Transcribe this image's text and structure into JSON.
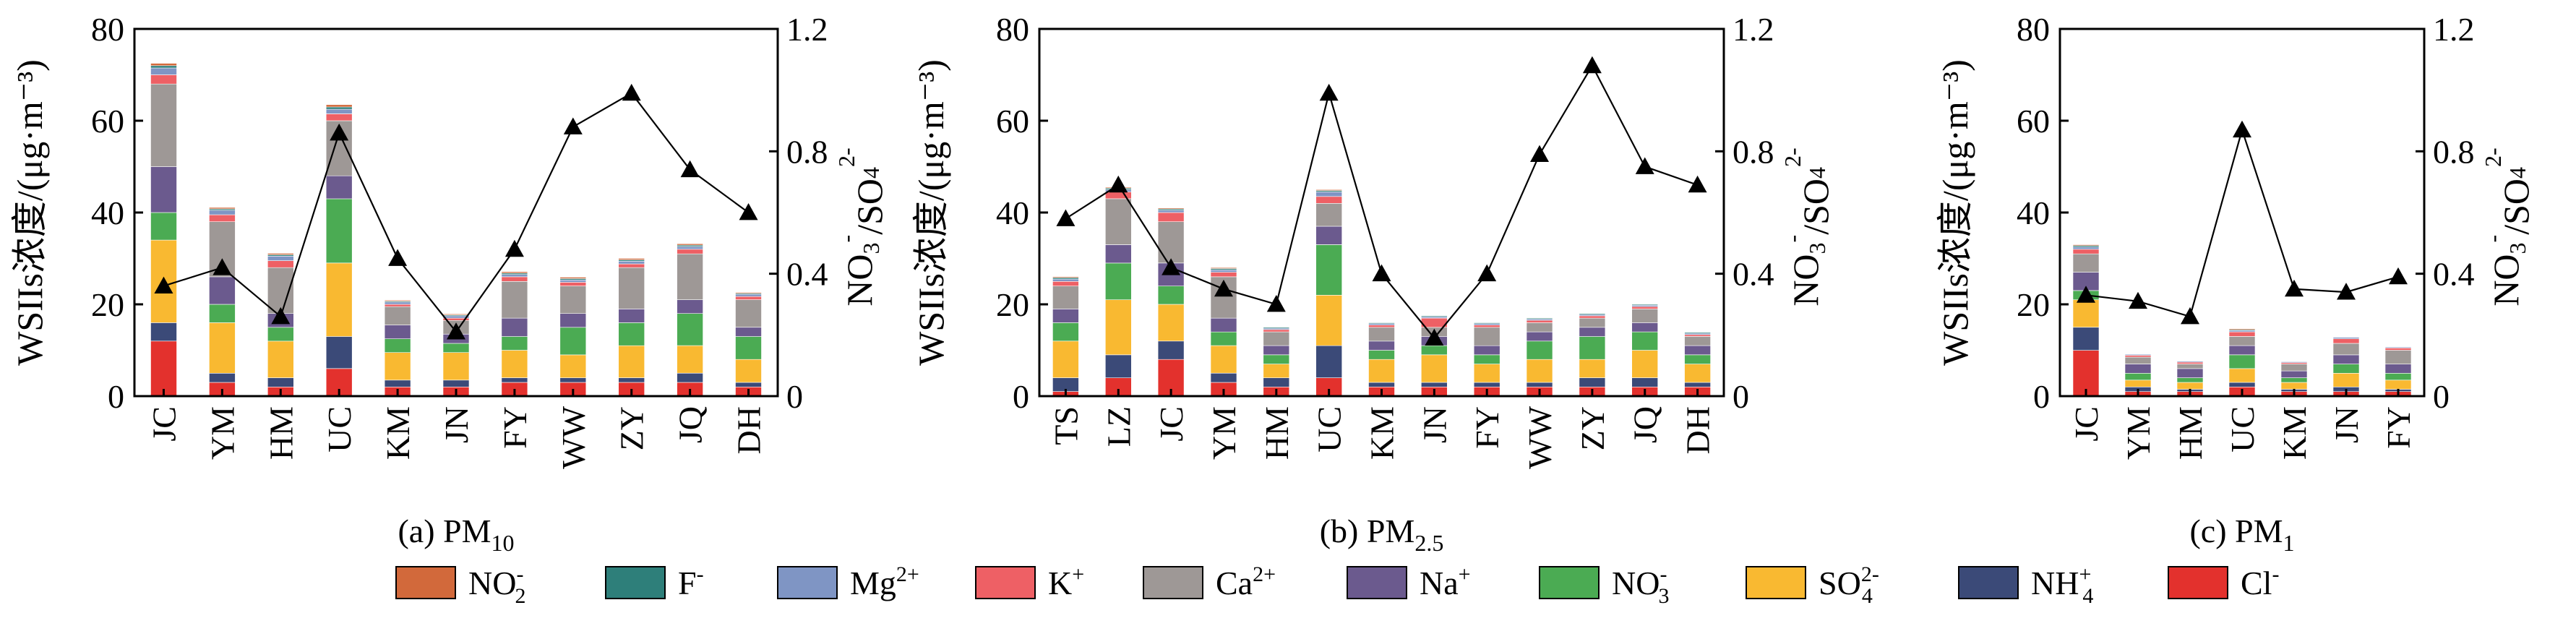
{
  "colors": {
    "Cl-": "#e3312d",
    "NH4+": "#3b4a78",
    "SO42-": "#f9b931",
    "NO3-": "#4bab53",
    "Na+": "#6b5a8e",
    "Ca2+": "#9e9896",
    "K+": "#ee6065",
    "Mg2+": "#7f95c4",
    "F-": "#2e7f7a",
    "NO2-": "#d2693b"
  },
  "stack_order": [
    "Cl-",
    "NH4+",
    "SO42-",
    "NO3-",
    "Na+",
    "Ca2+",
    "K+",
    "Mg2+",
    "F-",
    "NO2-"
  ],
  "legend": [
    {
      "key": "NO2-",
      "base": "NO",
      "sub": "2",
      "sup": "-"
    },
    {
      "key": "F-",
      "base": "F",
      "sub": "",
      "sup": "-"
    },
    {
      "key": "Mg2+",
      "base": "Mg",
      "sub": "",
      "sup": "2+"
    },
    {
      "key": "K+",
      "base": "K",
      "sub": "",
      "sup": "+"
    },
    {
      "key": "Ca2+",
      "base": "Ca",
      "sub": "",
      "sup": "2+"
    },
    {
      "key": "Na+",
      "base": "Na",
      "sub": "",
      "sup": "+"
    },
    {
      "key": "NO3-",
      "base": "NO",
      "sub": "3",
      "sup": "-"
    },
    {
      "key": "SO42-",
      "base": "SO",
      "sub": "4",
      "sup": "2-"
    },
    {
      "key": "NH4+",
      "base": "NH",
      "sub": "4",
      "sup": "+"
    },
    {
      "key": "Cl-",
      "base": "Cl",
      "sub": "",
      "sup": "-"
    }
  ],
  "axes": {
    "y_left_label": "WSIIs浓度/(μg·m⁻³)",
    "y_left_ticks": [
      0,
      20,
      40,
      60,
      80
    ],
    "y_right_ticks": [
      "0",
      "0.4",
      "0.8",
      "1.2"
    ],
    "y_left_range": [
      0,
      80
    ],
    "y_right_range": [
      0,
      1.2
    ]
  },
  "chart_data": [
    {
      "type": "bar",
      "caption_prefix": "(a) PM",
      "caption_sub": "10",
      "categories": [
        "JC",
        "YM",
        "HM",
        "UC",
        "KM",
        "JN",
        "FY",
        "WW",
        "ZY",
        "JQ",
        "DH"
      ],
      "series": [
        {
          "key": "Cl-",
          "values": [
            12,
            3,
            2,
            6,
            2,
            2,
            3,
            3,
            3,
            3,
            2
          ]
        },
        {
          "key": "NH4+",
          "values": [
            4,
            2,
            2,
            7,
            1.5,
            1.5,
            1,
            1,
            1,
            2,
            1
          ]
        },
        {
          "key": "SO42-",
          "values": [
            18,
            11,
            8,
            16,
            6,
            6,
            6,
            5,
            7,
            6,
            5
          ]
        },
        {
          "key": "NO3-",
          "values": [
            6,
            4,
            3,
            14,
            3,
            2,
            3,
            6,
            5,
            7,
            5
          ]
        },
        {
          "key": "Na+",
          "values": [
            10,
            6,
            3,
            5,
            3,
            2,
            4,
            3,
            3,
            3,
            2
          ]
        },
        {
          "key": "Ca2+",
          "values": [
            18,
            12,
            10,
            12,
            4,
            3,
            8,
            6,
            9,
            10,
            6
          ]
        },
        {
          "key": "K+",
          "values": [
            2,
            1.5,
            1.5,
            1.5,
            0.5,
            0.5,
            1,
            0.8,
            0.8,
            1,
            0.7
          ]
        },
        {
          "key": "Mg2+",
          "values": [
            1.5,
            1,
            1,
            1,
            0.5,
            0.5,
            0.5,
            0.5,
            0.6,
            0.6,
            0.5
          ]
        },
        {
          "key": "F-",
          "values": [
            0.5,
            0.3,
            0.3,
            0.5,
            0.2,
            0.2,
            0.3,
            0.3,
            0.3,
            0.3,
            0.2
          ]
        },
        {
          "key": "NO2-",
          "values": [
            0.5,
            0.3,
            0.3,
            0.5,
            0.2,
            0.2,
            0.3,
            0.3,
            0.3,
            0.3,
            0.2
          ]
        }
      ],
      "ratio_values": [
        0.36,
        0.42,
        0.26,
        0.86,
        0.45,
        0.21,
        0.48,
        0.88,
        0.99,
        0.74,
        0.6
      ]
    },
    {
      "type": "bar",
      "caption_prefix": "(b) PM",
      "caption_sub": "2.5",
      "categories": [
        "TS",
        "LZ",
        "JC",
        "YM",
        "HM",
        "UC",
        "KM",
        "JN",
        "FY",
        "WW",
        "ZY",
        "JQ",
        "DH"
      ],
      "series": [
        {
          "key": "Cl-",
          "values": [
            1,
            4,
            8,
            3,
            2,
            4,
            2,
            2,
            2,
            2,
            2,
            2,
            2
          ]
        },
        {
          "key": "NH4+",
          "values": [
            3,
            5,
            4,
            2,
            2,
            7,
            1,
            1,
            1,
            1,
            2,
            2,
            1
          ]
        },
        {
          "key": "SO42-",
          "values": [
            8,
            12,
            8,
            6,
            3,
            11,
            5,
            6,
            4,
            5,
            4,
            6,
            4
          ]
        },
        {
          "key": "NO3-",
          "values": [
            4,
            8,
            4,
            3,
            2,
            11,
            2,
            2,
            2,
            4,
            5,
            4,
            2
          ]
        },
        {
          "key": "Na+",
          "values": [
            3,
            4,
            5,
            3,
            2,
            4,
            2,
            2,
            2,
            2,
            2,
            2,
            2
          ]
        },
        {
          "key": "Ca2+",
          "values": [
            5,
            10,
            9,
            9,
            3,
            5,
            3,
            2,
            4,
            2,
            2,
            3,
            2
          ]
        },
        {
          "key": "K+",
          "values": [
            1,
            1.5,
            2,
            1,
            0.5,
            1.5,
            0.5,
            2,
            0.5,
            0.5,
            0.5,
            0.5,
            0.4
          ]
        },
        {
          "key": "Mg2+",
          "values": [
            0.5,
            0.5,
            0.5,
            0.5,
            0.3,
            1,
            0.3,
            0.3,
            0.3,
            0.3,
            0.3,
            0.3,
            0.3
          ]
        },
        {
          "key": "F-",
          "values": [
            0.3,
            0.3,
            0.3,
            0.3,
            0.2,
            0.3,
            0.2,
            0.2,
            0.2,
            0.2,
            0.2,
            0.2,
            0.2
          ]
        },
        {
          "key": "NO2-",
          "values": [
            0.2,
            0.2,
            0.2,
            0.2,
            0.1,
            0.2,
            0.1,
            0.1,
            0.1,
            0.1,
            0.1,
            0.1,
            0.1
          ]
        }
      ],
      "ratio_values": [
        0.58,
        0.69,
        0.42,
        0.35,
        0.3,
        0.99,
        0.4,
        0.19,
        0.4,
        0.79,
        1.08,
        0.75,
        0.69
      ]
    },
    {
      "type": "bar",
      "caption_prefix": "(c) PM",
      "caption_sub": "1",
      "categories": [
        "JC",
        "YM",
        "HM",
        "UC",
        "KM",
        "JN",
        "FY"
      ],
      "series": [
        {
          "key": "Cl-",
          "values": [
            10,
            1,
            1,
            2,
            1,
            1,
            1
          ]
        },
        {
          "key": "NH4+",
          "values": [
            5,
            1,
            0.5,
            1,
            0.5,
            1,
            0.5
          ]
        },
        {
          "key": "SO42-",
          "values": [
            6,
            1.5,
            1.5,
            3,
            1.5,
            3,
            2
          ]
        },
        {
          "key": "NO3-",
          "values": [
            2,
            1.5,
            1,
            3,
            1,
            2,
            1.5
          ]
        },
        {
          "key": "Na+",
          "values": [
            4,
            2,
            2,
            2,
            1.5,
            2,
            2
          ]
        },
        {
          "key": "Ca2+",
          "values": [
            4,
            1.5,
            1,
            2,
            1.5,
            2.5,
            3
          ]
        },
        {
          "key": "K+",
          "values": [
            1,
            0.4,
            0.4,
            1,
            0.3,
            1,
            0.5
          ]
        },
        {
          "key": "Mg2+",
          "values": [
            0.5,
            0.2,
            0.2,
            0.3,
            0.2,
            0.3,
            0.2
          ]
        },
        {
          "key": "F-",
          "values": [
            0.3,
            0.1,
            0.1,
            0.2,
            0.1,
            0.1,
            0.1
          ]
        },
        {
          "key": "NO2-",
          "values": [
            0.2,
            0.1,
            0.1,
            0.2,
            0.1,
            0.1,
            0.1
          ]
        }
      ],
      "ratio_values": [
        0.33,
        0.31,
        0.26,
        0.87,
        0.35,
        0.34,
        0.39
      ]
    }
  ]
}
